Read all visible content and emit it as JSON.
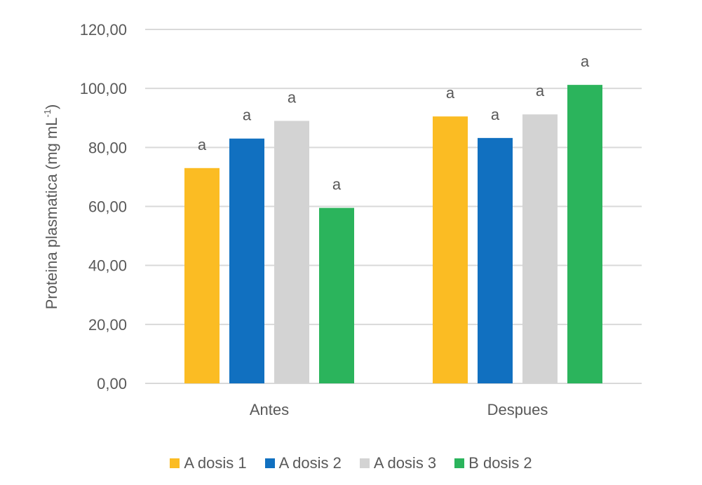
{
  "chart_data": {
    "type": "bar",
    "categories": [
      "Antes",
      "Despues"
    ],
    "series": [
      {
        "name": "A dosis 1",
        "values": [
          73,
          90.5
        ],
        "color": "#FBBC23",
        "labels": [
          "a",
          "a"
        ]
      },
      {
        "name": "A dosis 2",
        "values": [
          83,
          83.2
        ],
        "color": "#1170C0",
        "labels": [
          "a",
          "a"
        ]
      },
      {
        "name": "A dosis 3",
        "values": [
          89,
          91.2
        ],
        "color": "#D3D3D3",
        "labels": [
          "a",
          "a"
        ]
      },
      {
        "name": "B dosis 2",
        "values": [
          59.5,
          101.2
        ],
        "color": "#2BB45C",
        "labels": [
          "a",
          "a"
        ]
      }
    ],
    "ylabel_main": "Proteina plasmatica (mg mL",
    "ylabel_sup": "-1",
    "ylabel_close": ")",
    "ylim": [
      0,
      120
    ],
    "yticks": [
      "0,00",
      "20,00",
      "40,00",
      "60,00",
      "80,00",
      "100,00",
      "120,00"
    ],
    "ytick_values": [
      0,
      20,
      40,
      60,
      80,
      100,
      120
    ],
    "grid": true,
    "legend_position": "bottom",
    "gridline_color": "#D9D9D9",
    "text_color": "#595959"
  }
}
